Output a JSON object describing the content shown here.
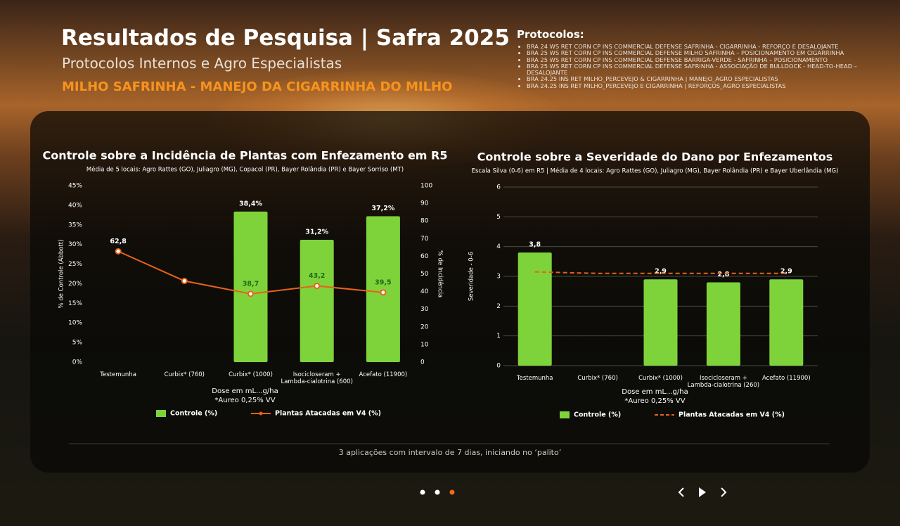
{
  "header": {
    "title": "Resultados de Pesquisa | Safra 2025",
    "subtitle": "Protocolos Internos e Agro Especialistas",
    "highlight": "MILHO SAFRINHA - MANEJO DA CIGARRINHA DO MILHO"
  },
  "protocols": {
    "title": "Protocolos:",
    "items": [
      "BRA 24 WS RET CORN CP INS COMMERCIAL DEFENSE SAFRINHA - CIGARRINHA - REFORÇO E DESALOJANTE",
      "BRA 25 WS RET CORN CP INS COMMERCIAL DEFENSE MILHO SAFRINHA – POSICIONAMENTO EM CIGARRINHA",
      "BRA 25 WS RET CORN CP INS COMMERCIAL DEFENSE BARRIGA-VERDE - SAFRINHA – POSICIONAMENTO",
      "BRA 25 WS RET CORN CP INS COMMERCIAL DEFENSE SAFRINHA - ASSOCIAÇÃO DE BULLDOCK - HEAD-TO-HEAD – DESALOJANTE",
      "BRA 24.25 INS RET MILHO_PERCEVEJO & CIGARRINHA | MANEJO_AGRO ESPECIALISTAS",
      "BRA 24.25 INS RET MILHO_PERCEVEJO E CIGARRINHA | REFORÇOS_AGRO ESPECIALISTAS"
    ]
  },
  "footer_note": "3 aplicações com intervalo de 7 dias, iniciando no ‘palito’",
  "chart_data": [
    {
      "type": "bar_line",
      "title": "Controle sobre a Incidência de Plantas com Enfezamento em R5",
      "subtitle": "Média de 5 locais: Agro Rattes (GO), Juliagro (MG), Copacol (PR), Bayer Rolândia (PR) e Bayer Sorriso (MT)",
      "ylabel": "% de Controle (Abbott)",
      "y2label": "% de Incidência",
      "xlabel": "Dose em mL...g/ha",
      "note": "*Aureo 0,25% VV",
      "categories": [
        "Testemunha",
        "Curbix* (760)",
        "Curbix* (1000)",
        "Isocicloseram + Lambda-cialotrina (600)",
        "Acefato (11900)"
      ],
      "series": [
        {
          "name": "Controle (%)",
          "type": "bar",
          "color": "#7ed33a",
          "values": [
            null,
            null,
            38.4,
            31.2,
            37.2
          ],
          "value_labels": [
            null,
            null,
            "38,4%",
            "31,2%",
            "37,2%"
          ]
        },
        {
          "name": "Plantas Atacadas em V4 (%)",
          "type": "line",
          "axis": "y2",
          "color": "#e8621a",
          "marker": true,
          "dashed": false,
          "values": [
            62.8,
            46,
            38.7,
            43.2,
            39.5
          ],
          "value_labels": [
            "62,8",
            null,
            "38,7",
            "43,2",
            "39,5"
          ]
        }
      ],
      "ylim": [
        0,
        45
      ],
      "yticks": [
        {
          "value": 0,
          "label": "0%"
        },
        {
          "value": 5,
          "label": "5%"
        },
        {
          "value": 10,
          "label": "10%"
        },
        {
          "value": 15,
          "label": "15%"
        },
        {
          "value": 20,
          "label": "20%"
        },
        {
          "value": 25,
          "label": "25%"
        },
        {
          "value": 30,
          "label": "30%"
        },
        {
          "value": 35,
          "label": "35%"
        },
        {
          "value": 40,
          "label": "40%"
        },
        {
          "value": 45,
          "label": "45%"
        }
      ],
      "y2lim": [
        0,
        100
      ],
      "y2ticks": [
        0,
        10,
        20,
        30,
        40,
        50,
        60,
        70,
        80,
        90,
        100
      ],
      "grid": false
    },
    {
      "type": "bar_line",
      "title": "Controle sobre a Severidade do Dano por Enfezamentos",
      "subtitle": "Escala Silva (0-6) em R5 | Média de 4 locais: Agro Rattes (GO), Juliagro (MG), Bayer Rolândia (PR) e Bayer Uberlândia (MG)",
      "ylabel": "Severidade - 0-6",
      "xlabel": "Dose em mL...g/ha",
      "note": "*Aureo 0,25% VV",
      "categories": [
        "Testemunha",
        "Curbix* (760)",
        "Curbix* (1000)",
        "Isocicloseram + Lambda-cialotrina (260)",
        "Acefato (11900)"
      ],
      "series": [
        {
          "name": "Controle (%)",
          "type": "bar",
          "color": "#7ed33a",
          "values": [
            3.8,
            null,
            2.9,
            2.8,
            2.9
          ],
          "value_labels": [
            "3,8",
            null,
            "2,9",
            "2,8",
            "2,9"
          ]
        },
        {
          "name": "Plantas Atacadas em V4 (%)",
          "type": "line",
          "color": "#e8621a",
          "marker": false,
          "dashed": true,
          "values": [
            3.15,
            3.1,
            3.1,
            3.1,
            3.1
          ]
        }
      ],
      "ylim": [
        0,
        6
      ],
      "yticks": [
        0,
        1,
        2,
        3,
        4,
        5,
        6
      ],
      "grid": true
    }
  ]
}
